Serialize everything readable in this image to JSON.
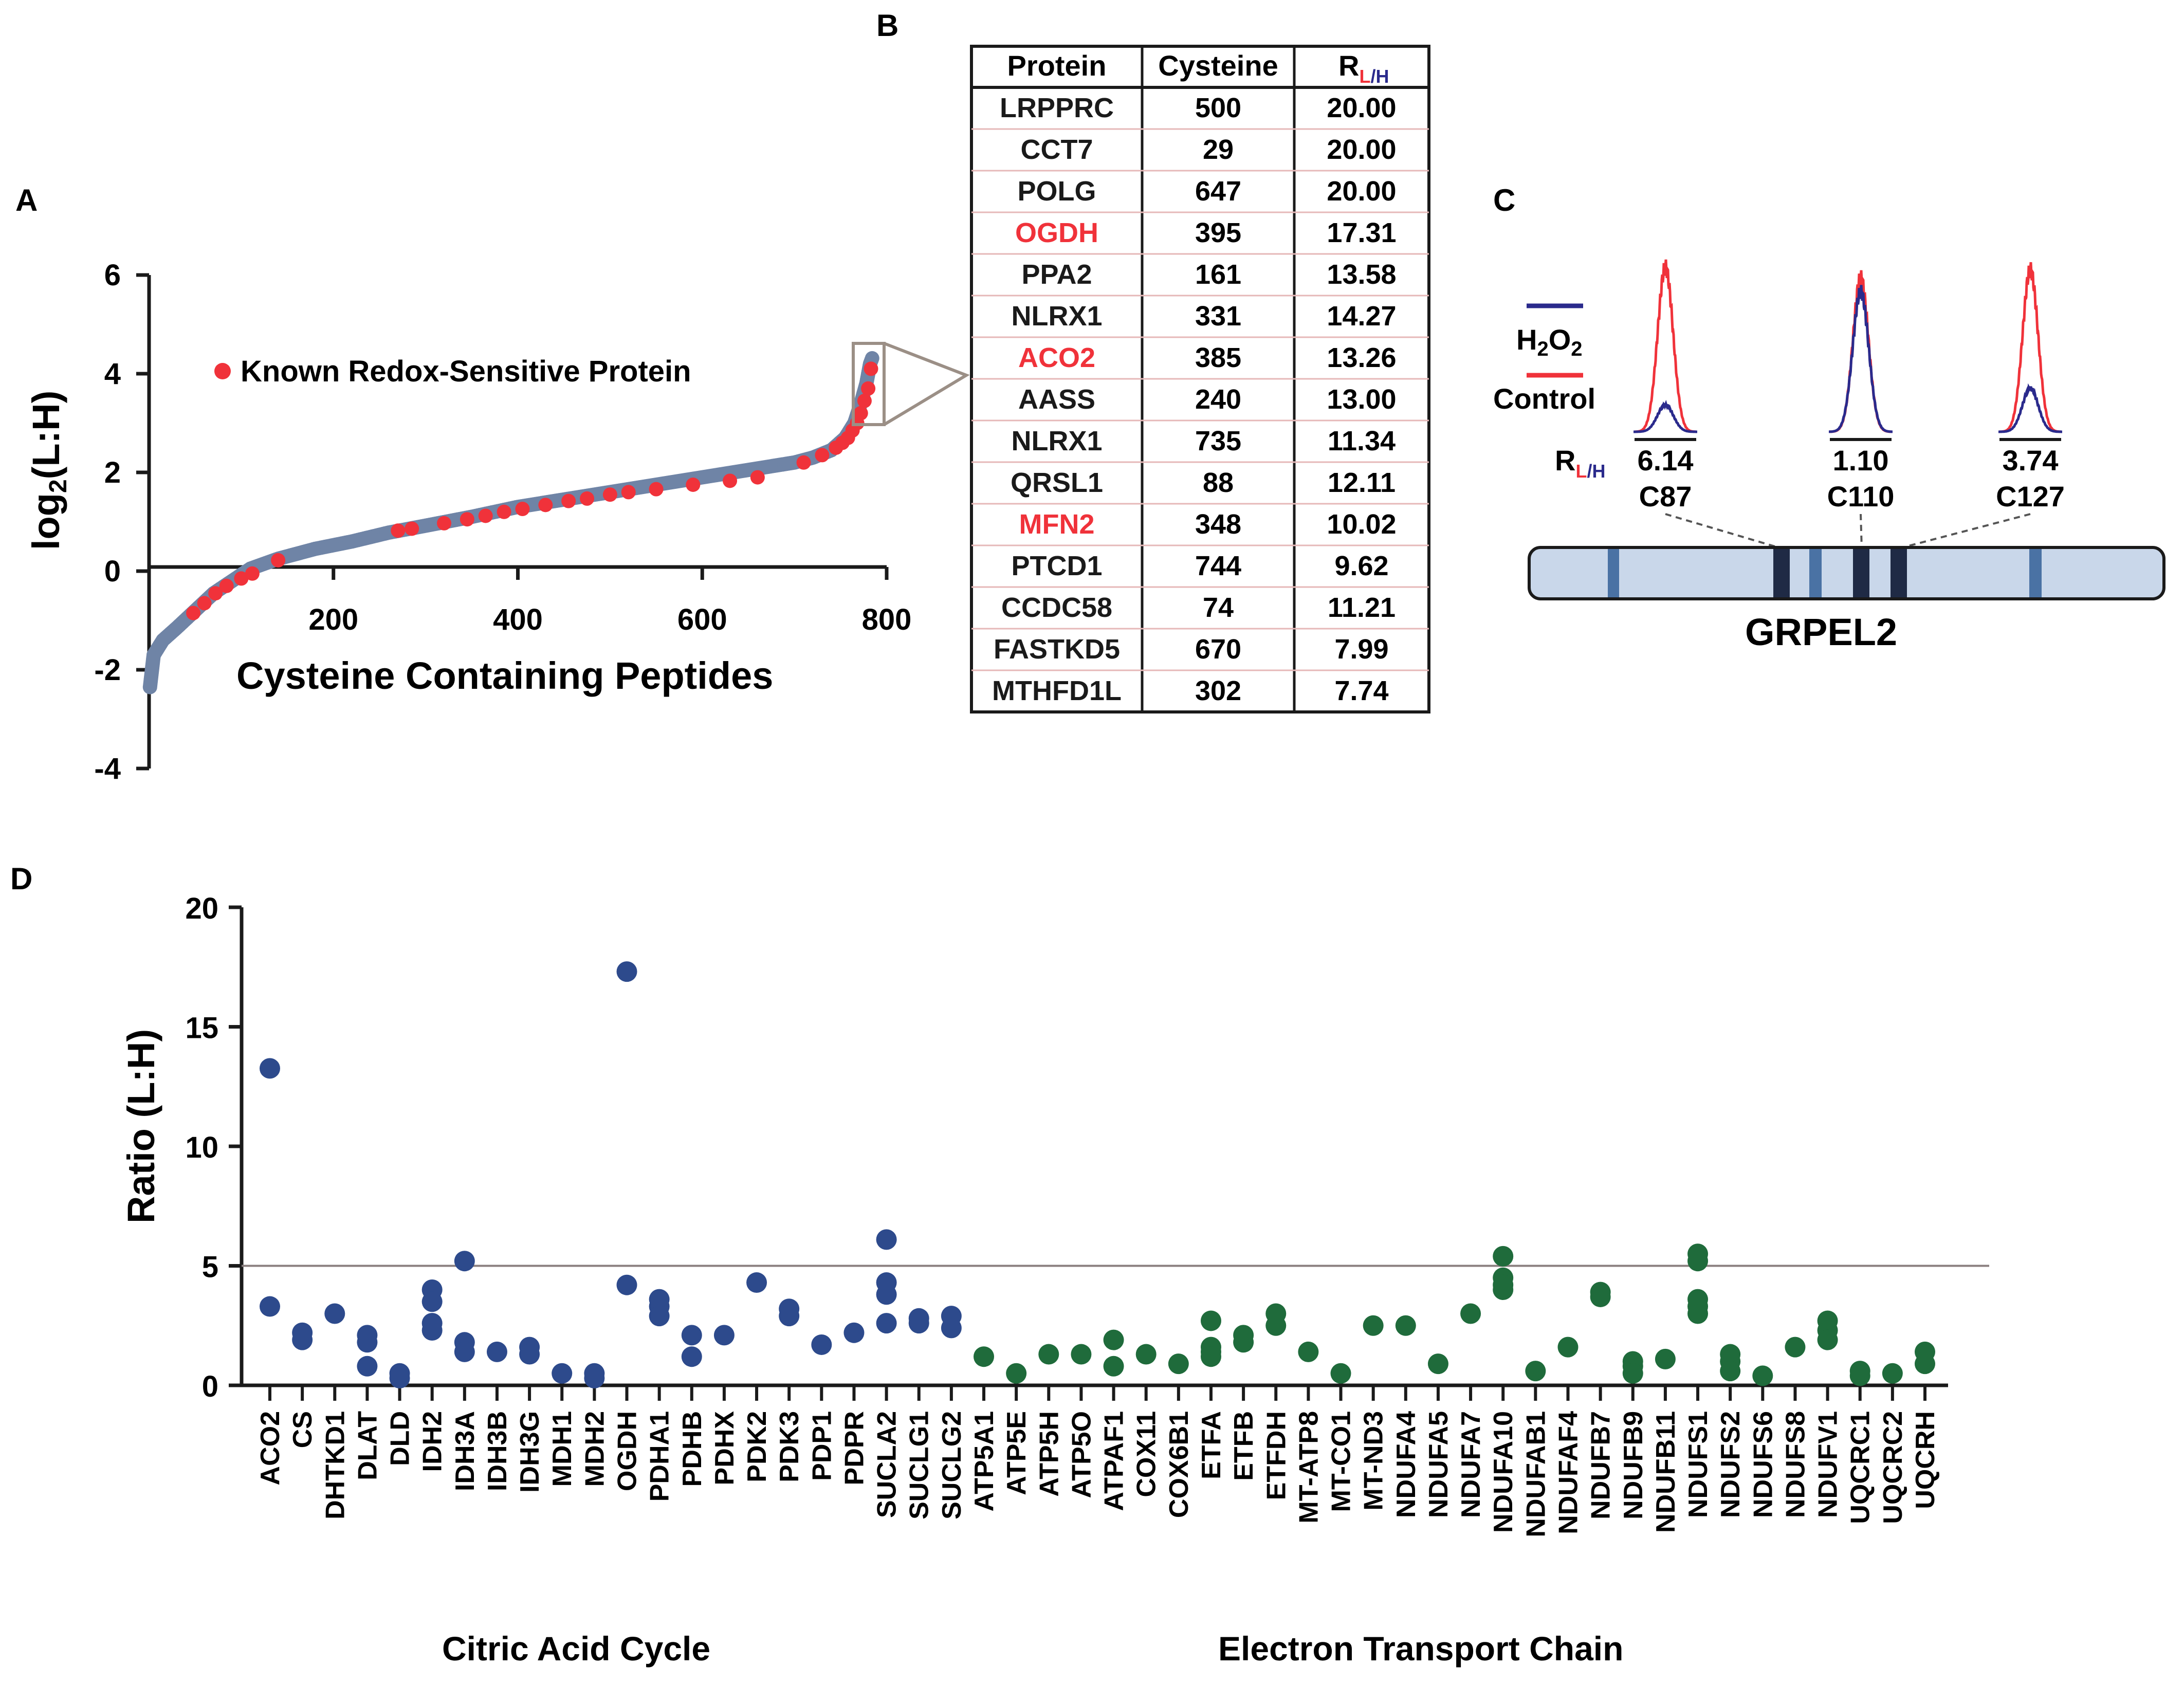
{
  "panels": {
    "a": "A",
    "b": "B",
    "c": "C",
    "d": "D"
  },
  "colors": {
    "blue_grey": "#6f84a6",
    "red": "#f0323a",
    "navy": "#2d4a8c",
    "green": "#1f6b3b",
    "dark": "#1a1a1a"
  },
  "chart_data": [
    {
      "id": "A",
      "type": "scatter",
      "title": "",
      "xlabel": "Cysteine Containing Peptides",
      "ylabel_main": "log",
      "ylabel_sub": "2",
      "ylabel_rest": "(L:H)",
      "xlim": [
        0,
        800
      ],
      "ylim": [
        -4,
        6
      ],
      "x_ticks": [
        "200",
        "400",
        "600",
        "800"
      ],
      "y_ticks": [
        "-4",
        "-2",
        "0",
        "2",
        "4",
        "6"
      ],
      "legend": "Known Redox-Sensitive Protein",
      "series": [
        {
          "name": "Cysteine peptides",
          "color": "#6f84a6",
          "curve": [
            [
              1,
              -2.35
            ],
            [
              5,
              -1.7
            ],
            [
              15,
              -1.4
            ],
            [
              30,
              -1.15
            ],
            [
              50,
              -0.8
            ],
            [
              70,
              -0.45
            ],
            [
              90,
              -0.2
            ],
            [
              110,
              0.05
            ],
            [
              140,
              0.25
            ],
            [
              180,
              0.45
            ],
            [
              220,
              0.6
            ],
            [
              260,
              0.78
            ],
            [
              300,
              0.92
            ],
            [
              350,
              1.1
            ],
            [
              400,
              1.3
            ],
            [
              450,
              1.45
            ],
            [
              500,
              1.6
            ],
            [
              550,
              1.75
            ],
            [
              600,
              1.9
            ],
            [
              650,
              2.05
            ],
            [
              700,
              2.2
            ],
            [
              720,
              2.3
            ],
            [
              740,
              2.45
            ],
            [
              755,
              2.7
            ],
            [
              765,
              3.0
            ],
            [
              772,
              3.4
            ],
            [
              778,
              3.8
            ],
            [
              782,
              4.2
            ],
            [
              785,
              4.35
            ]
          ]
        },
        {
          "name": "Known Redox-Sensitive Protein",
          "color": "#f0323a",
          "x": [
            48,
            60,
            72,
            84,
            100,
            112,
            140,
            270,
            285,
            320,
            345,
            365,
            385,
            405,
            430,
            455,
            475,
            500,
            520,
            550,
            590,
            630,
            660,
            710,
            730,
            745,
            752,
            758,
            763,
            768,
            772,
            776,
            780,
            783
          ],
          "y": [
            -0.85,
            -0.65,
            -0.45,
            -0.3,
            -0.15,
            -0.05,
            0.22,
            0.82,
            0.86,
            0.97,
            1.05,
            1.12,
            1.2,
            1.26,
            1.34,
            1.42,
            1.47,
            1.55,
            1.6,
            1.66,
            1.75,
            1.83,
            1.9,
            2.2,
            2.35,
            2.5,
            2.6,
            2.7,
            2.85,
            3.0,
            3.2,
            3.45,
            3.7,
            4.1
          ]
        }
      ]
    },
    {
      "id": "D",
      "type": "scatter",
      "title": "",
      "xlabel": "",
      "ylabel": "Ratio (L:H)",
      "ylim": [
        0,
        20
      ],
      "y_ticks": [
        "0",
        "5",
        "10",
        "15",
        "20"
      ],
      "threshold": 5,
      "groups": [
        "Citric Acid Cycle",
        "Electron Transport Chain"
      ],
      "categories": [
        "ACO2",
        "CS",
        "DHTKD1",
        "DLAT",
        "DLD",
        "IDH2",
        "IDH3A",
        "IDH3B",
        "IDH3G",
        "MDH1",
        "MDH2",
        "OGDH",
        "PDHA1",
        "PDHB",
        "PDHX",
        "PDK2",
        "PDK3",
        "PDP1",
        "PDPR",
        "SUCLA2",
        "SUCLG1",
        "SUCLG2",
        "ATP5A1",
        "ATP5E",
        "ATP5H",
        "ATP5O",
        "ATPAF1",
        "COX11",
        "COX6B1",
        "ETFA",
        "ETFB",
        "ETFDH",
        "MT-ATP8",
        "MT-CO1",
        "MT-ND3",
        "NDUFA4",
        "NDUFA5",
        "NDUFA7",
        "NDUFA10",
        "NDUFAB1",
        "NDUFAF4",
        "NDUFB7",
        "NDUFB9",
        "NDUFB11",
        "NDUFS1",
        "NDUFS2",
        "NDUFS6",
        "NDUFS8",
        "NDUFV1",
        "UQCRC1",
        "UQCRC2",
        "UQCRH"
      ],
      "category_group": [
        "Citric Acid Cycle",
        "Citric Acid Cycle",
        "Citric Acid Cycle",
        "Citric Acid Cycle",
        "Citric Acid Cycle",
        "Citric Acid Cycle",
        "Citric Acid Cycle",
        "Citric Acid Cycle",
        "Citric Acid Cycle",
        "Citric Acid Cycle",
        "Citric Acid Cycle",
        "Citric Acid Cycle",
        "Citric Acid Cycle",
        "Citric Acid Cycle",
        "Citric Acid Cycle",
        "Citric Acid Cycle",
        "Citric Acid Cycle",
        "Citric Acid Cycle",
        "Citric Acid Cycle",
        "Citric Acid Cycle",
        "Citric Acid Cycle",
        "Citric Acid Cycle",
        "Electron Transport Chain",
        "Electron Transport Chain",
        "Electron Transport Chain",
        "Electron Transport Chain",
        "Electron Transport Chain",
        "Electron Transport Chain",
        "Electron Transport Chain",
        "Electron Transport Chain",
        "Electron Transport Chain",
        "Electron Transport Chain",
        "Electron Transport Chain",
        "Electron Transport Chain",
        "Electron Transport Chain",
        "Electron Transport Chain",
        "Electron Transport Chain",
        "Electron Transport Chain",
        "Electron Transport Chain",
        "Electron Transport Chain",
        "Electron Transport Chain",
        "Electron Transport Chain",
        "Electron Transport Chain",
        "Electron Transport Chain",
        "Electron Transport Chain",
        "Electron Transport Chain",
        "Electron Transport Chain",
        "Electron Transport Chain",
        "Electron Transport Chain",
        "Electron Transport Chain",
        "Electron Transport Chain",
        "Electron Transport Chain"
      ],
      "values": [
        [
          13.26,
          3.3
        ],
        [
          2.2,
          1.9
        ],
        [
          3.0
        ],
        [
          2.1,
          1.8,
          0.8
        ],
        [
          0.5,
          0.3
        ],
        [
          4.0,
          3.5,
          2.6,
          2.3
        ],
        [
          5.2,
          1.8,
          1.4
        ],
        [
          1.4
        ],
        [
          1.6,
          1.3
        ],
        [
          0.5
        ],
        [
          0.5,
          0.3
        ],
        [
          17.31,
          4.2
        ],
        [
          3.6,
          3.3,
          2.9
        ],
        [
          2.1,
          1.2
        ],
        [
          2.1
        ],
        [
          4.3
        ],
        [
          3.2,
          2.9
        ],
        [
          1.7
        ],
        [
          2.2
        ],
        [
          6.1,
          4.3,
          3.8,
          2.6
        ],
        [
          2.8,
          2.6
        ],
        [
          2.9,
          2.4
        ],
        [
          1.2
        ],
        [
          0.5
        ],
        [
          1.3
        ],
        [
          1.3
        ],
        [
          1.9,
          0.8
        ],
        [
          1.3
        ],
        [
          0.9
        ],
        [
          2.7,
          1.6,
          1.4,
          1.2
        ],
        [
          2.1,
          1.8
        ],
        [
          3.0,
          2.5
        ],
        [
          1.4
        ],
        [
          0.5
        ],
        [
          2.5
        ],
        [
          2.5
        ],
        [
          0.9
        ],
        [
          3.0
        ],
        [
          5.4,
          4.5,
          4.2,
          4.0
        ],
        [
          0.6
        ],
        [
          1.6
        ],
        [
          3.9,
          3.7
        ],
        [
          1.0,
          0.8,
          0.5
        ],
        [
          1.1
        ],
        [
          5.5,
          5.2,
          3.6,
          3.3,
          3.0
        ],
        [
          1.3,
          1.0,
          0.6
        ],
        [
          0.4
        ],
        [
          1.6
        ],
        [
          2.7,
          2.3,
          1.9
        ],
        [
          0.6,
          0.4
        ],
        [
          0.5
        ],
        [
          1.4,
          0.9
        ]
      ]
    }
  ],
  "table": {
    "headers": [
      "Protein",
      "Cysteine",
      "R"
    ],
    "header_sub_l": "L",
    "header_sub_slash": "/",
    "header_sub_h": "H",
    "rows": [
      {
        "protein": "LRPPRC",
        "cysteine": "500",
        "ratio": "20.00",
        "redox": false
      },
      {
        "protein": "CCT7",
        "cysteine": "29",
        "ratio": "20.00",
        "redox": false
      },
      {
        "protein": "POLG",
        "cysteine": "647",
        "ratio": "20.00",
        "redox": false
      },
      {
        "protein": "OGDH",
        "cysteine": "395",
        "ratio": "17.31",
        "redox": true
      },
      {
        "protein": "PPA2",
        "cysteine": "161",
        "ratio": "13.58",
        "redox": false
      },
      {
        "protein": "NLRX1",
        "cysteine": "331",
        "ratio": "14.27",
        "redox": false
      },
      {
        "protein": "ACO2",
        "cysteine": "385",
        "ratio": "13.26",
        "redox": true
      },
      {
        "protein": "AASS",
        "cysteine": "240",
        "ratio": "13.00",
        "redox": false
      },
      {
        "protein": "NLRX1",
        "cysteine": "735",
        "ratio": "11.34",
        "redox": false
      },
      {
        "protein": "QRSL1",
        "cysteine": "88",
        "ratio": "12.11",
        "redox": false
      },
      {
        "protein": "MFN2",
        "cysteine": "348",
        "ratio": "10.02",
        "redox": true
      },
      {
        "protein": "PTCD1",
        "cysteine": "744",
        "ratio": "9.62",
        "redox": false
      },
      {
        "protein": "CCDC58",
        "cysteine": "74",
        "ratio": "11.21",
        "redox": false
      },
      {
        "protein": "FASTKD5",
        "cysteine": "670",
        "ratio": "7.99",
        "redox": false
      },
      {
        "protein": "MTHFD1L",
        "cysteine": "302",
        "ratio": "7.74",
        "redox": false
      }
    ]
  },
  "panel_c": {
    "legend_h2o2": "H",
    "legend_h2o2_sub1": "2",
    "legend_o": "O",
    "legend_h2o2_sub2": "2",
    "legend_control": "Control",
    "ratio_label": "R",
    "ratio_sub_l": "L",
    "ratio_sub_slash": "/",
    "ratio_sub_h": "H",
    "peaks": [
      {
        "ratio": "6.14",
        "site": "C87"
      },
      {
        "ratio": "1.10",
        "site": "C110"
      },
      {
        "ratio": "3.74",
        "site": "C127"
      }
    ],
    "protein_name": "GRPEL2"
  }
}
